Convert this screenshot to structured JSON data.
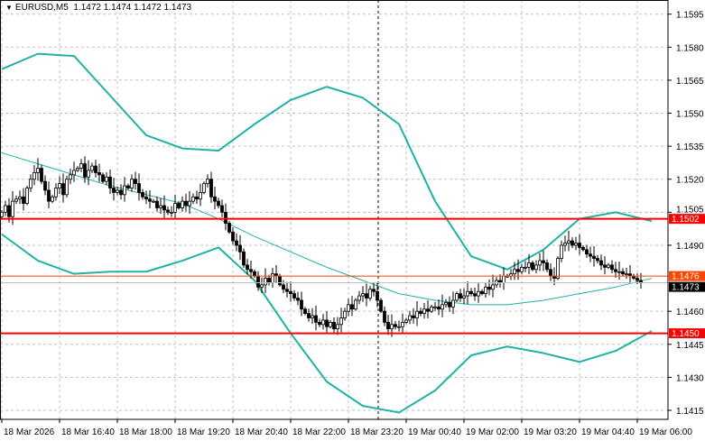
{
  "header": {
    "symbol": "EURUSD,M5",
    "ohlc": "1.1472 1.1474 1.1472 1.1473"
  },
  "colors": {
    "band": "#20b2a6",
    "ma": "#20b2a6",
    "support_resistance": "#ff0000",
    "level_orange": "#ff4500",
    "bid_line": "#c0c0c0",
    "bid_label_bg": "#000000",
    "grid": "#c0c0c0"
  },
  "chart_data": {
    "type": "candlestick",
    "timeframe": "M5",
    "ylim": [
      1.1408,
      1.1602
    ],
    "grid": true,
    "y_ticks": [
      "1.1595",
      "1.1580",
      "1.1565",
      "1.1550",
      "1.1535",
      "1.1520",
      "1.1505",
      "1.1490",
      "1.1460",
      "1.1445",
      "1.1430",
      "1.1415"
    ],
    "x_ticks": [
      "18 Mar 2026",
      "18 Mar 16:40",
      "18 Mar 18:00",
      "18 Mar 19:20",
      "18 Mar 20:40",
      "18 Mar 22:00",
      "18 Mar 23:20",
      "19 Mar 00:40",
      "19 Mar 02:00",
      "19 Mar 03:20",
      "19 Mar 04:40",
      "19 Mar 06:00"
    ],
    "closes": [
      1.1505,
      1.1508,
      1.1503,
      1.151,
      1.1511,
      1.1512,
      1.1509,
      1.1516,
      1.152,
      1.1523,
      1.1525,
      1.1519,
      1.1515,
      1.151,
      1.1512,
      1.1516,
      1.1518,
      1.1513,
      1.152,
      1.1522,
      1.1524,
      1.1525,
      1.1527,
      1.1521,
      1.1524,
      1.1526,
      1.1523,
      1.1522,
      1.1519,
      1.1521,
      1.1516,
      1.1514,
      1.1515,
      1.1513,
      1.1517,
      1.1516,
      1.152,
      1.1518,
      1.1514,
      1.1512,
      1.1511,
      1.151,
      1.151,
      1.1507,
      1.1508,
      1.1506,
      1.1505,
      1.1505,
      1.1509,
      1.1507,
      1.151,
      1.1508,
      1.151,
      1.1512,
      1.1511,
      1.1514,
      1.1518,
      1.152,
      1.1512,
      1.151,
      1.1508,
      1.1505,
      1.15,
      1.1496,
      1.1492,
      1.149,
      1.1487,
      1.1481,
      1.1479,
      1.1478,
      1.1476,
      1.1471,
      1.1472,
      1.1475,
      1.1473,
      1.1477,
      1.1476,
      1.1472,
      1.147,
      1.1469,
      1.1468,
      1.1466,
      1.1465,
      1.1461,
      1.1459,
      1.1457,
      1.1458,
      1.1455,
      1.1454,
      1.1456,
      1.1453,
      1.1455,
      1.1452,
      1.1454,
      1.1457,
      1.146,
      1.1463,
      1.1461,
      1.1465,
      1.1467,
      1.1468,
      1.1466,
      1.147,
      1.1469,
      1.1465,
      1.146,
      1.1455,
      1.1452,
      1.1454,
      1.1453,
      1.1453,
      1.1455,
      1.1456,
      1.1458,
      1.1457,
      1.146,
      1.1459,
      1.1461,
      1.146,
      1.1462,
      1.1462,
      1.1461,
      1.1463,
      1.1464,
      1.1462,
      1.1465,
      1.1468,
      1.1466,
      1.1467,
      1.1469,
      1.1468,
      1.1467,
      1.1469,
      1.1468,
      1.1471,
      1.147,
      1.1472,
      1.1474,
      1.1473,
      1.1476,
      1.1476,
      1.1477,
      1.1479,
      1.1478,
      1.148,
      1.148,
      1.1482,
      1.1479,
      1.1481,
      1.1483,
      1.1482,
      1.1479,
      1.1476,
      1.1475,
      1.1484,
      1.149,
      1.1491,
      1.1492,
      1.149,
      1.1491,
      1.1489,
      1.1488,
      1.1486,
      1.1485,
      1.1484,
      1.1483,
      1.1481,
      1.148,
      1.1481,
      1.1479,
      1.1478,
      1.1478,
      1.1477,
      1.1477,
      1.1476,
      1.1475,
      1.1474,
      1.1473
    ],
    "bollinger_upper": [
      1.157,
      1.1577,
      1.1576,
      1.1558,
      1.154,
      1.1534,
      1.1533,
      1.1545,
      1.1556,
      1.1562,
      1.1557,
      1.1545,
      1.151,
      1.1485,
      1.1479,
      1.1488,
      1.1502,
      1.1505,
      1.1501
    ],
    "bollinger_lower": [
      1.1495,
      1.1483,
      1.1477,
      1.1478,
      1.1478,
      1.1483,
      1.1489,
      1.1474,
      1.145,
      1.1428,
      1.1417,
      1.1414,
      1.1424,
      1.144,
      1.1444,
      1.1441,
      1.1437,
      1.1442,
      1.1451
    ],
    "moving_average": [
      1.1532,
      1.1527,
      1.1522,
      1.1517,
      1.1513,
      1.1509,
      1.1502,
      1.1494,
      1.1487,
      1.148,
      1.1474,
      1.1468,
      1.1465,
      1.1463,
      1.1463,
      1.1465,
      1.1468,
      1.1471,
      1.1475
    ],
    "levels": [
      {
        "price": "1.1502",
        "style": "red-thick"
      },
      {
        "price": "1.1476",
        "style": "orange-thin"
      },
      {
        "price": "1.1450",
        "style": "red-thick"
      }
    ],
    "bid": "1.1473"
  }
}
